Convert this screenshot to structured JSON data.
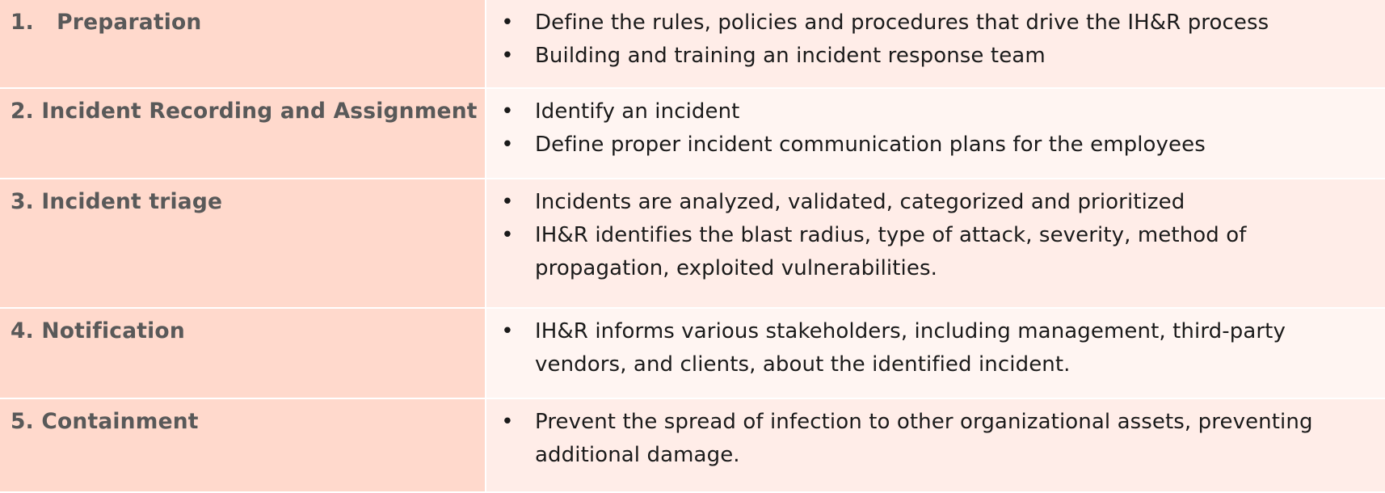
{
  "steps": [
    {
      "title": "1.   Preparation",
      "bullets": [
        "Define the rules, policies and procedures that drive the IH&R process",
        "Building and training an incident response team"
      ]
    },
    {
      "title": "2. Incident Recording and Assignment",
      "bullets": [
        "Identify an incident",
        "Define proper incident communication plans for the employees"
      ]
    },
    {
      "title": "3. Incident triage",
      "bullets": [
        "Incidents are analyzed, validated, categorized and prioritized",
        "IH&R identifies the blast radius, type of attack, severity, method of propagation, exploited vulnerabilities."
      ]
    },
    {
      "title": "4. Notification",
      "bullets": [
        "IH&R informs various stakeholders, including management, third-party vendors, and clients, about the identified incident."
      ]
    },
    {
      "title": "5. Containment",
      "bullets": [
        "Prevent the spread of infection to other organizational assets, preventing additional damage."
      ]
    }
  ],
  "bullet_glyph": "•",
  "colors": {
    "left_column": "#FFD9CC",
    "right_odd": "#FFEDE8",
    "right_even": "#FFF5F2",
    "title_text": "#595959",
    "body_text": "#1a1a1a"
  }
}
